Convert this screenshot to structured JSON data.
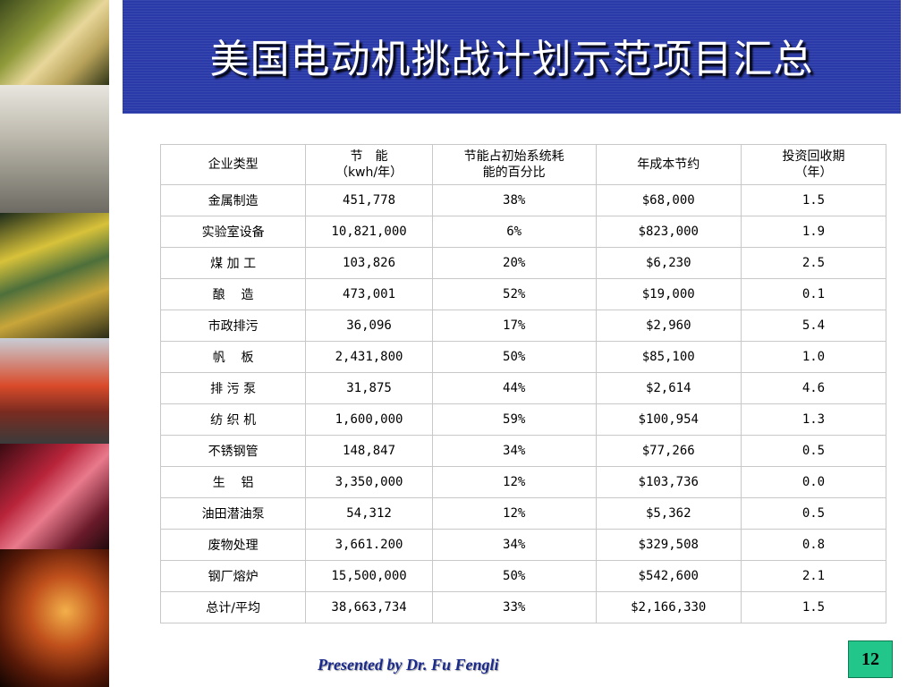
{
  "title": "美国电动机挑战计划示范项目汇总",
  "table": {
    "headers": [
      "企业类型",
      "节　能\n（kwh/年）",
      "节能占初始系统耗\n能的百分比",
      "年成本节约",
      "投资回收期\n（年）"
    ],
    "rows": [
      [
        "金属制造",
        "451,778",
        "38%",
        "$68,000",
        "1.5"
      ],
      [
        "实验室设备",
        "10,821,000",
        "6%",
        "$823,000",
        "1.9"
      ],
      [
        "煤 加 工",
        "103,826",
        "20%",
        "$6,230",
        "2.5"
      ],
      [
        "酿    造",
        "473,001",
        "52%",
        "$19,000",
        "0.1"
      ],
      [
        "市政排污",
        "36,096",
        "17%",
        "$2,960",
        "5.4"
      ],
      [
        "帆    板",
        "2,431,800",
        "50%",
        "$85,100",
        "1.0"
      ],
      [
        "排 污 泵",
        "31,875",
        "44%",
        "$2,614",
        "4.6"
      ],
      [
        "纺 织 机",
        "1,600,000",
        "59%",
        "$100,954",
        "1.3"
      ],
      [
        "不锈钢管",
        "148,847",
        "34%",
        "$77,266",
        "0.5"
      ],
      [
        "生    铝",
        "3,350,000",
        "12%",
        "$103,736",
        "0.0"
      ],
      [
        "油田潜油泵",
        "54,312",
        "12%",
        "$5,362",
        "0.5"
      ],
      [
        "废物处理",
        "3,661.200",
        "34%",
        "$329,508",
        "0.8"
      ],
      [
        "钢厂熔炉",
        "15,500,000",
        "50%",
        "$542,600",
        "2.1"
      ],
      [
        "总计/平均",
        "38,663,734",
        "33%",
        "$2,166,330",
        "1.5"
      ]
    ]
  },
  "footer": {
    "presenter": "Presented by Dr. Fu Fengli",
    "page_number": "12"
  },
  "colors": {
    "banner": "#2a3aa8",
    "presenter_text": "#1a2a8c",
    "page_badge": "#22c58a"
  }
}
